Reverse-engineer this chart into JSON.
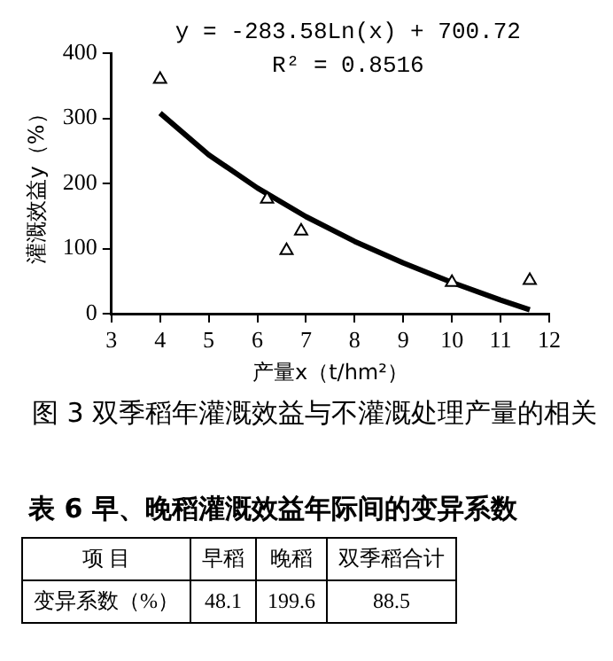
{
  "chart_data": [
    {
      "type": "scatter",
      "annotations": [
        "y = -283.58Ln(x) + 700.72",
        "R² = 0.8516",
        "图 3 双季稻年灌溉效益与不灌溉处理产量的相关"
      ],
      "xlabel": "产量x（t/hm²）",
      "ylabel": "灌溉效益y（%）",
      "xlim": [
        3,
        12
      ],
      "xticks": [
        3,
        4,
        5,
        6,
        7,
        8,
        9,
        10,
        11,
        12
      ],
      "ylim": [
        0,
        400
      ],
      "yticks": [
        0,
        100,
        200,
        300,
        400
      ],
      "grid": false,
      "legend": false,
      "series": [
        {
          "type": "scatter",
          "color": "#000000",
          "marker": "triangle",
          "x": [
            4.0,
            6.2,
            6.6,
            6.9,
            10.0,
            11.6
          ],
          "values": [
            360,
            176,
            97,
            127,
            48,
            51
          ]
        },
        {
          "type": "line",
          "color": "#000000",
          "marker": "none",
          "x": [
            4,
            5,
            6,
            7,
            8,
            9,
            10,
            11,
            11.6
          ],
          "values": [
            308,
            244,
            193,
            149,
            111,
            78,
            48,
            21,
            6
          ]
        }
      ]
    },
    {
      "type": "other",
      "title": "表 6 早、晚稻灌溉效益年际间的变异系数",
      "annotations": [
        "项 目",
        "早稻",
        "晚稻",
        "双季稻合计",
        "变异系数（%）",
        "48.1",
        "199.6",
        "88.5"
      ]
    }
  ]
}
